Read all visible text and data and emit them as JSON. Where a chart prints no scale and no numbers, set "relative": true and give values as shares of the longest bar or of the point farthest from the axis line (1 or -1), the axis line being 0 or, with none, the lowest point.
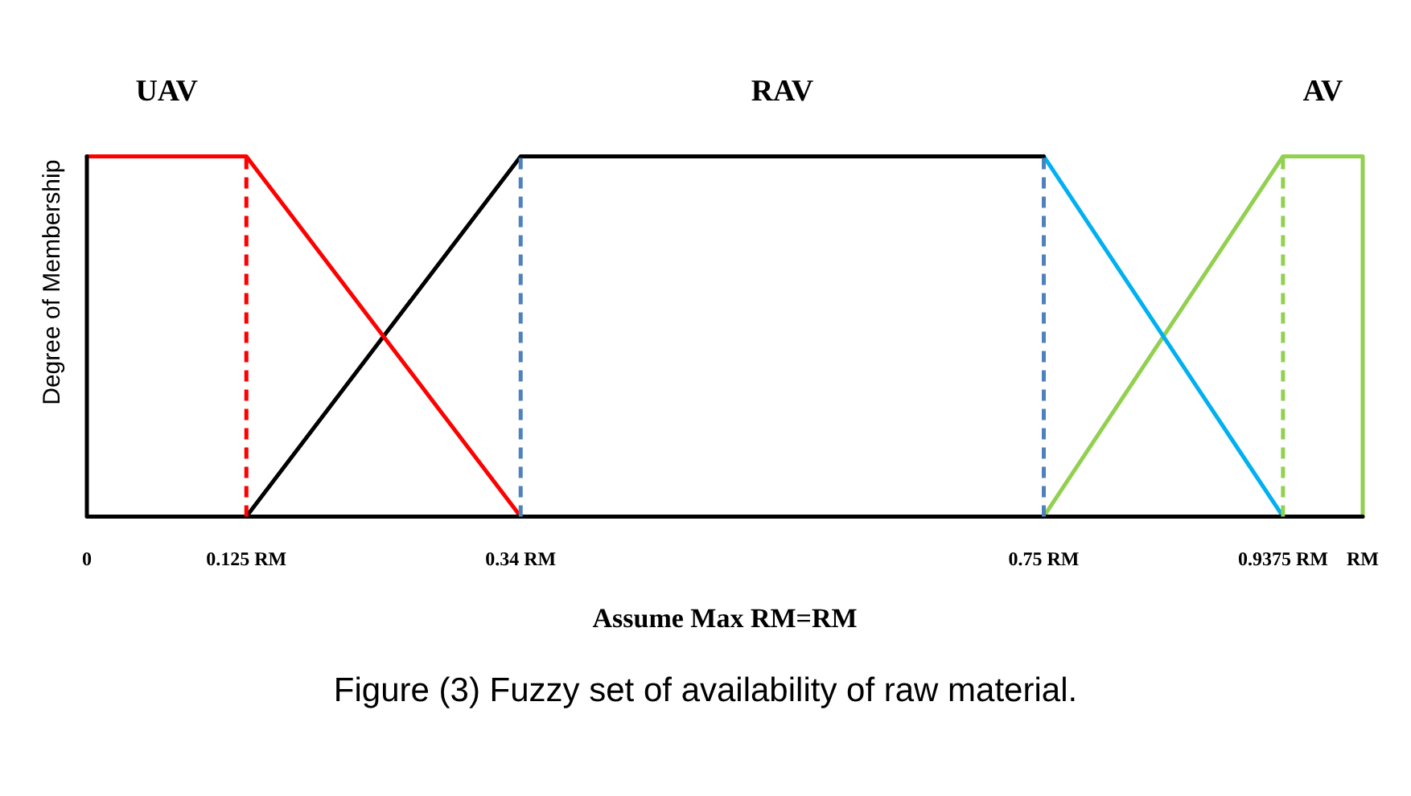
{
  "chart_data": {
    "type": "line",
    "relative": true,
    "xlabel": "Assume Max RM=RM",
    "ylabel": "Degree of Membership",
    "xlim": [
      0,
      1
    ],
    "xticks": [
      0,
      {
        "value": 0.125,
        "label": "0.125 RM"
      },
      {
        "value": 0.34,
        "label": "0.34 RM"
      },
      {
        "value": 0.75,
        "label": "0.75 RM"
      },
      {
        "value": 0.9375,
        "label": "0.9375 RM"
      },
      {
        "value": 1,
        "label": "RM"
      }
    ],
    "series": [
      {
        "color": "#000000",
        "x": [
          0,
          0,
          1
        ],
        "values": [
          1,
          0,
          0
        ]
      },
      {
        "name": "UAV",
        "color": "#ff0000",
        "x": [
          0,
          0.125,
          0.34
        ],
        "values": [
          1,
          1,
          0
        ]
      },
      {
        "name": "RAV",
        "color": "#000000",
        "x": [
          0.125,
          0.34,
          0.75
        ],
        "values": [
          0,
          1,
          1
        ]
      },
      {
        "color": "#00b0f0",
        "x": [
          0.75,
          0.9375
        ],
        "values": [
          1,
          0
        ]
      },
      {
        "name": "AV",
        "color": "#92d050",
        "x": [
          0.75,
          0.9375,
          1,
          1
        ],
        "values": [
          0,
          1,
          1,
          0
        ]
      }
    ],
    "ref_lines": [
      {
        "axis": "x",
        "value": 0.125,
        "color": "#ff0000",
        "line_style": "dashed"
      },
      {
        "axis": "x",
        "value": 0.34,
        "color": "#4f81bd",
        "line_style": "dashed"
      },
      {
        "axis": "x",
        "value": 0.75,
        "color": "#4f81bd",
        "line_style": "dashed"
      },
      {
        "axis": "x",
        "value": 0.9375,
        "color": "#92d050",
        "line_style": "dashed"
      }
    ],
    "grid": false,
    "legend": false,
    "marker": "none",
    "line_style": "solid",
    "annotations": [
      "Figure (3) Fuzzy set of availability of raw material."
    ]
  }
}
